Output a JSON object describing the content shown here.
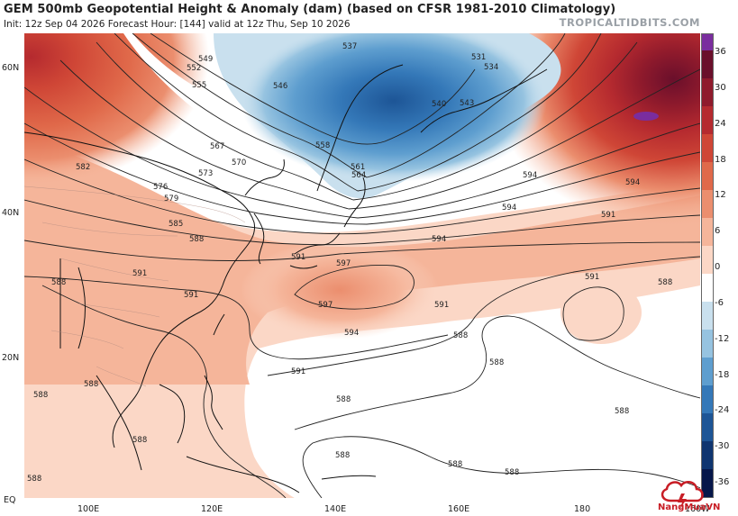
{
  "header": {
    "title": "GEM 500mb Geopotential Height & Anomaly (dam) (based on CFSR 1981-2010 Climatology)",
    "subtitle": "Init: 12z Sep 04 2026   Forecast Hour: [144]   valid at 12z Thu, Sep 10 2026",
    "brand": "TROPICALTIDBITS.COM"
  },
  "axes": {
    "lat_labels": [
      "60N",
      "40N",
      "20N",
      "EQ"
    ],
    "lon_labels": [
      "100E",
      "120E",
      "140E",
      "160E",
      "180",
      "160W"
    ]
  },
  "colorbar": {
    "labels": [
      "36",
      "30",
      "24",
      "18",
      "12",
      "6",
      "0",
      "-6",
      "-12",
      "-18",
      "-24",
      "-30",
      "-36"
    ],
    "colors": [
      "#6a0f2b",
      "#8f1a2c",
      "#b52a2f",
      "#cf4636",
      "#e0694a",
      "#eb8e6e",
      "#f5b59a",
      "#fbd7c6",
      "#ffffff",
      "#c9e0ee",
      "#96c3e0",
      "#5e9ecf",
      "#3478b8",
      "#1d5596",
      "#0f3570",
      "#06174a"
    ],
    "top_color": "#7a2d9e"
  },
  "contour_labels": [
    "537",
    "549",
    "552",
    "555",
    "546",
    "558",
    "567",
    "570",
    "573",
    "576",
    "579",
    "582",
    "585",
    "588",
    "591",
    "594",
    "597",
    "561",
    "564",
    "531",
    "534",
    "540",
    "543",
    "588"
  ],
  "map": {
    "ocean_color": "#ffffff",
    "coast_color": "#111111"
  },
  "watermark": {
    "text": "NangMuaVN",
    "icon": "cloud-lightning-icon",
    "color": "#c81d25"
  }
}
